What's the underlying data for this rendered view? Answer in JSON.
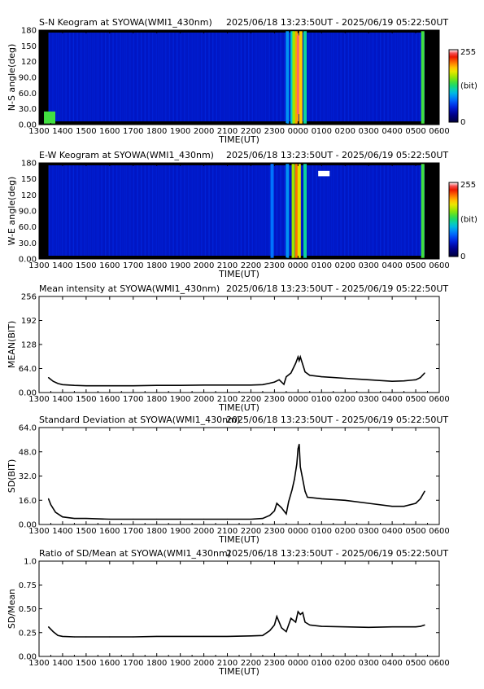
{
  "panels": [
    {
      "kind": "keogram",
      "title": "S-N Keogram at SYOWA(WMI1_430nm)",
      "time_range": "2025/06/18 13:23:50UT - 2025/06/19 05:22:50UT",
      "ylabel": "N-S angle(deg)",
      "xlabel": "TIME(UT)",
      "yticks": [
        "0.00",
        "30.0",
        "60.0",
        "90.0",
        "120",
        "150",
        "180"
      ],
      "colorbar": {
        "max": "255",
        "unit": "(bit)",
        "min": "0"
      }
    },
    {
      "kind": "keogram",
      "title": "E-W Keogram at SYOWA(WMI1_430nm)",
      "time_range": "2025/06/18 13:23:50UT - 2025/06/19 05:22:50UT",
      "ylabel": "W-E angle(deg)",
      "xlabel": "TIME(UT)",
      "yticks": [
        "0.00",
        "30.0",
        "60.0",
        "90.0",
        "120",
        "150",
        "180"
      ],
      "colorbar": {
        "max": "255",
        "unit": "(bit)",
        "min": "0"
      }
    },
    {
      "kind": "line",
      "title": "Mean intensity at SYOWA(WMI1_430nm)",
      "time_range": "2025/06/18 13:23:50UT - 2025/06/19 05:22:50UT",
      "ylabel": "MEAN(BIT)",
      "xlabel": "TIME(UT)",
      "yticks": [
        "0.00",
        "64.0",
        "128",
        "192",
        "256"
      ]
    },
    {
      "kind": "line",
      "title": "Standard Deviation at SYOWA(WMI1_430nm)",
      "time_range": "2025/06/18 13:23:50UT - 2025/06/19 05:22:50UT",
      "ylabel": "SD(BIT)",
      "xlabel": "TIME(UT)",
      "yticks": [
        "0.00",
        "16.0",
        "32.0",
        "48.0",
        "64.0"
      ]
    },
    {
      "kind": "line",
      "title": "Ratio of SD/Mean at SYOWA(WMI1_430nm)",
      "time_range": "2025/06/18 13:23:50UT - 2025/06/19 05:22:50UT",
      "ylabel": "SD/Mean",
      "xlabel": "TIME(UT)",
      "yticks": [
        "0.00",
        "0.25",
        "0.50",
        "0.75",
        "1.0"
      ]
    }
  ],
  "xticks": [
    "1300",
    "1400",
    "1500",
    "1600",
    "1700",
    "1800",
    "1900",
    "2000",
    "2100",
    "2200",
    "2300",
    "0000",
    "0100",
    "0200",
    "0300",
    "0400",
    "0500",
    "0600"
  ],
  "chart_data": [
    {
      "type": "heatmap",
      "title": "S-N Keogram at SYOWA(WMI1_430nm)",
      "ylabel": "N-S angle(deg)",
      "xlabel": "TIME(UT)",
      "xlim_hours": [
        13,
        30
      ],
      "ylim": [
        0,
        180
      ],
      "colorbar_range": [
        0,
        255
      ],
      "data_range_hours": [
        13.4,
        29.38
      ],
      "background_intensity": 45,
      "features": [
        {
          "t": 13.45,
          "angle": [
            0,
            25
          ],
          "intensity": 140
        },
        {
          "t": 23.55,
          "angle": [
            0,
            180
          ],
          "intensity": 90
        },
        {
          "t": 23.75,
          "angle": [
            0,
            180
          ],
          "intensity": 110
        },
        {
          "t": 23.83,
          "angle": [
            0,
            180
          ],
          "intensity": 160
        },
        {
          "t": 23.95,
          "angle": [
            0,
            180
          ],
          "intensity": 200
        },
        {
          "t": 24.02,
          "angle": [
            20,
            170
          ],
          "intensity": 245
        },
        {
          "t": 24.12,
          "angle": [
            0,
            180
          ],
          "intensity": 190
        },
        {
          "t": 24.3,
          "angle": [
            0,
            180
          ],
          "intensity": 120
        },
        {
          "t": 29.3,
          "angle": [
            0,
            180
          ],
          "intensity": 140
        }
      ]
    },
    {
      "type": "heatmap",
      "title": "E-W Keogram at SYOWA(WMI1_430nm)",
      "ylabel": "W-E angle(deg)",
      "xlabel": "TIME(UT)",
      "xlim_hours": [
        13,
        30
      ],
      "ylim": [
        0,
        180
      ],
      "colorbar_range": [
        0,
        255
      ],
      "data_range_hours": [
        13.4,
        29.38
      ],
      "background_intensity": 45,
      "features": [
        {
          "t": 22.9,
          "angle": [
            0,
            180
          ],
          "intensity": 80
        },
        {
          "t": 23.55,
          "angle": [
            0,
            180
          ],
          "intensity": 90
        },
        {
          "t": 23.8,
          "angle": [
            0,
            180
          ],
          "intensity": 160
        },
        {
          "t": 23.95,
          "angle": [
            0,
            180
          ],
          "intensity": 210
        },
        {
          "t": 24.05,
          "angle": [
            0,
            180
          ],
          "intensity": 175
        },
        {
          "t": 24.3,
          "angle": [
            0,
            180
          ],
          "intensity": 120
        },
        {
          "t": 25.1,
          "angle": [
            155,
            165
          ],
          "intensity": 255
        },
        {
          "t": 29.3,
          "angle": [
            0,
            180
          ],
          "intensity": 140
        }
      ]
    },
    {
      "type": "line",
      "title": "Mean intensity at SYOWA(WMI1_430nm)",
      "ylabel": "MEAN(BIT)",
      "xlabel": "TIME(UT)",
      "xlim_hours": [
        13,
        30
      ],
      "ylim": [
        0,
        256
      ],
      "x_hours": [
        13.4,
        13.6,
        13.8,
        14.0,
        14.5,
        15,
        16,
        17,
        18,
        19,
        20,
        21,
        22,
        22.5,
        22.8,
        23.0,
        23.2,
        23.4,
        23.5,
        23.7,
        23.8,
        23.9,
        24.0,
        24.05,
        24.1,
        24.2,
        24.3,
        24.5,
        25,
        26,
        27,
        28,
        28.5,
        29,
        29.2,
        29.38
      ],
      "values": [
        40,
        30,
        24,
        21,
        19,
        18,
        18,
        18,
        19,
        19,
        20,
        20,
        20,
        21,
        25,
        28,
        34,
        22,
        42,
        52,
        65,
        78,
        95,
        85,
        95,
        75,
        55,
        46,
        42,
        38,
        34,
        30,
        31,
        34,
        40,
        52
      ]
    },
    {
      "type": "line",
      "title": "Standard Deviation at SYOWA(WMI1_430nm)",
      "ylabel": "SD(BIT)",
      "xlabel": "TIME(UT)",
      "xlim_hours": [
        13,
        30
      ],
      "ylim": [
        0,
        64
      ],
      "x_hours": [
        13.4,
        13.5,
        13.7,
        14.0,
        14.5,
        15,
        16,
        17,
        18,
        19,
        20,
        21,
        22,
        22.5,
        22.8,
        23.0,
        23.1,
        23.3,
        23.5,
        23.6,
        23.75,
        23.85,
        23.95,
        24.0,
        24.05,
        24.1,
        24.2,
        24.3,
        24.4,
        25,
        26,
        27,
        28,
        28.5,
        29,
        29.2,
        29.38
      ],
      "values": [
        17,
        13,
        8,
        5,
        4,
        4,
        3.5,
        3.5,
        3.5,
        3.5,
        3.5,
        3.5,
        3.5,
        4,
        6,
        9,
        14,
        11,
        7,
        15,
        23,
        30,
        40,
        50,
        53,
        38,
        30,
        22,
        18,
        17,
        16,
        14,
        12,
        12,
        14,
        17,
        22
      ]
    },
    {
      "type": "line",
      "title": "Ratio of SD/Mean at SYOWA(WMI1_430nm)",
      "ylabel": "SD/Mean",
      "xlabel": "TIME(UT)",
      "xlim_hours": [
        13,
        30
      ],
      "ylim": [
        0,
        1.0
      ],
      "x_hours": [
        13.4,
        13.6,
        13.8,
        14.0,
        14.5,
        15,
        16,
        17,
        18,
        19,
        20,
        21,
        22,
        22.5,
        22.8,
        23.0,
        23.1,
        23.3,
        23.5,
        23.7,
        23.9,
        24.0,
        24.1,
        24.2,
        24.3,
        24.5,
        25,
        26,
        27,
        28,
        28.5,
        29,
        29.2,
        29.38
      ],
      "values": [
        0.31,
        0.26,
        0.22,
        0.21,
        0.205,
        0.205,
        0.205,
        0.205,
        0.21,
        0.21,
        0.21,
        0.21,
        0.215,
        0.22,
        0.27,
        0.33,
        0.42,
        0.3,
        0.26,
        0.4,
        0.36,
        0.47,
        0.44,
        0.46,
        0.36,
        0.33,
        0.315,
        0.31,
        0.305,
        0.31,
        0.31,
        0.31,
        0.315,
        0.33
      ]
    }
  ]
}
